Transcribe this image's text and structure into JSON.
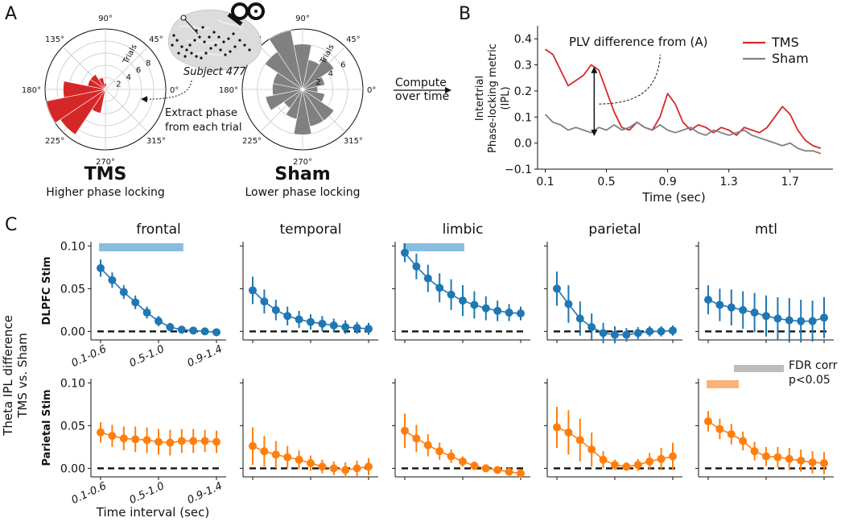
{
  "panel_labels": {
    "a": "A",
    "b": "B",
    "c": "C"
  },
  "panel_a": {
    "angle_labels": [
      "0°",
      "45°",
      "90°",
      "135°",
      "180°",
      "225°",
      "270°",
      "315°"
    ],
    "trials_label": "Trials",
    "subject_label": "Subject 477",
    "extract_label_1": "Extract phase",
    "extract_label_2": "from each trial",
    "tms": {
      "title": "TMS",
      "subtitle": "Higher phase locking",
      "radial_ticks": [
        "2",
        "4",
        "6",
        "8"
      ],
      "color": "#d62728"
    },
    "sham": {
      "title": "Sham",
      "subtitle": "Lower phase locking",
      "radial_ticks": [
        "2",
        "4",
        "6"
      ],
      "color": "#808080"
    },
    "compute_label_1": "Compute",
    "compute_label_2": "over time"
  },
  "chart_data": [
    {
      "type": "bar",
      "subtype": "polar-histogram",
      "name": "TMS",
      "color": "#d62728",
      "bin_width_deg": 22.5,
      "bin_centers_deg": [
        0,
        22.5,
        45,
        67.5,
        90,
        112.5,
        135,
        157.5,
        180,
        202.5,
        225,
        247.5,
        270,
        292.5,
        315,
        337.5
      ],
      "values": [
        0,
        0,
        0,
        0,
        1,
        2,
        3,
        3,
        7,
        10,
        9,
        4,
        0,
        0,
        0,
        0
      ],
      "rmax": 10
    },
    {
      "type": "bar",
      "subtype": "polar-histogram",
      "name": "Sham",
      "color": "#808080",
      "bin_width_deg": 22.5,
      "bin_centers_deg": [
        0,
        22.5,
        45,
        67.5,
        90,
        112.5,
        135,
        157.5,
        180,
        202.5,
        225,
        247.5,
        270,
        292.5,
        315,
        337.5
      ],
      "values": [
        2,
        3,
        5,
        4,
        6,
        8,
        6,
        4,
        4,
        5,
        3,
        4,
        6,
        5,
        5,
        3
      ],
      "rmax": 8
    },
    {
      "type": "line",
      "title": "",
      "xlabel": "Time (sec)",
      "ylabel": "Intertrial Phase-locking metric (IPL)",
      "ylabel_lines": [
        "Intertrial",
        "Phase-locking metric",
        "(IPL)"
      ],
      "xlim": [
        0.05,
        1.98
      ],
      "ylim": [
        -0.1,
        0.45
      ],
      "xticks": [
        0.1,
        0.5,
        0.9,
        1.3,
        1.7
      ],
      "xtick_labels": [
        "0.1",
        "0.5",
        "0.9",
        "1.3",
        "1.7"
      ],
      "yticks": [
        -0.1,
        0.0,
        0.1,
        0.2,
        0.3,
        0.4
      ],
      "ytick_labels": [
        "−0.1",
        "0.0",
        "0.1",
        "0.2",
        "0.3",
        "0.4"
      ],
      "annotation": "PLV difference from (A)",
      "arrow_at_x": 0.42,
      "arrow_y_range": [
        0.03,
        0.29
      ],
      "legend": [
        "TMS",
        "Sham"
      ],
      "x": [
        0.1,
        0.15,
        0.2,
        0.25,
        0.3,
        0.35,
        0.4,
        0.45,
        0.5,
        0.55,
        0.6,
        0.65,
        0.7,
        0.75,
        0.8,
        0.85,
        0.9,
        0.95,
        1.0,
        1.05,
        1.1,
        1.15,
        1.2,
        1.25,
        1.3,
        1.35,
        1.4,
        1.45,
        1.5,
        1.55,
        1.6,
        1.65,
        1.7,
        1.75,
        1.8,
        1.85,
        1.9
      ],
      "series": [
        {
          "name": "TMS",
          "color": "#d62728",
          "values": [
            0.36,
            0.34,
            0.28,
            0.22,
            0.24,
            0.26,
            0.3,
            0.28,
            0.2,
            0.12,
            0.06,
            0.05,
            0.08,
            0.06,
            0.05,
            0.1,
            0.19,
            0.15,
            0.08,
            0.05,
            0.07,
            0.06,
            0.04,
            0.06,
            0.05,
            0.03,
            0.06,
            0.05,
            0.04,
            0.06,
            0.1,
            0.14,
            0.11,
            0.05,
            0.01,
            -0.01,
            -0.02
          ]
        },
        {
          "name": "Sham",
          "color": "#808080",
          "values": [
            0.11,
            0.08,
            0.07,
            0.05,
            0.06,
            0.05,
            0.04,
            0.06,
            0.05,
            0.07,
            0.05,
            0.06,
            0.08,
            0.06,
            0.05,
            0.07,
            0.05,
            0.04,
            0.05,
            0.06,
            0.04,
            0.03,
            0.05,
            0.04,
            0.03,
            0.04,
            0.05,
            0.03,
            0.02,
            0.01,
            0.0,
            -0.01,
            0.0,
            -0.02,
            -0.03,
            -0.03,
            -0.04
          ]
        }
      ]
    },
    {
      "type": "line",
      "subtype": "errorbar-grid",
      "rows": [
        "DLPFC Stim",
        "Parietal Stim"
      ],
      "row_colors": [
        "#1f77b4",
        "#ff7f0e"
      ],
      "columns": [
        "frontal",
        "temporal",
        "limbic",
        "parietal",
        "mtl"
      ],
      "ylabel": "Theta IPL difference TMS vs. Sham",
      "ylabel_lines": [
        "Theta IPL difference",
        "TMS vs. Sham"
      ],
      "xlabel": "Time interval (sec)",
      "ylim": [
        -0.01,
        0.105
      ],
      "yticks": [
        0.0,
        0.05,
        0.1
      ],
      "ytick_labels": [
        "0.00",
        "0.05",
        "0.10"
      ],
      "xtick_labels": [
        "0.1-0.6",
        "0.5-1.0",
        "0.9-1.4"
      ],
      "xtick_positions": [
        0,
        5,
        10
      ],
      "legend": {
        "label_1": "FDR corr",
        "label_2": "p<0.05",
        "color": "#bdbdbd"
      },
      "panels": [
        {
          "row": 0,
          "col": 0,
          "values": [
            0.074,
            0.06,
            0.046,
            0.034,
            0.022,
            0.012,
            0.005,
            0.002,
            0.001,
            0.0,
            -0.001
          ],
          "errors": [
            0.01,
            0.009,
            0.008,
            0.008,
            0.007,
            0.006,
            0.005,
            0.004,
            0.004,
            0.003,
            0.003
          ],
          "sig": [
            0,
            7
          ],
          "sig_color": "#89bde0"
        },
        {
          "row": 0,
          "col": 1,
          "values": [
            0.048,
            0.035,
            0.025,
            0.018,
            0.014,
            0.011,
            0.009,
            0.007,
            0.005,
            0.004,
            0.003
          ],
          "errors": [
            0.016,
            0.014,
            0.012,
            0.011,
            0.01,
            0.009,
            0.009,
            0.008,
            0.008,
            0.007,
            0.007
          ],
          "sig": null
        },
        {
          "row": 0,
          "col": 2,
          "values": [
            0.092,
            0.076,
            0.062,
            0.051,
            0.043,
            0.036,
            0.031,
            0.027,
            0.024,
            0.022,
            0.021
          ],
          "errors": [
            0.011,
            0.015,
            0.016,
            0.017,
            0.018,
            0.018,
            0.016,
            0.014,
            0.012,
            0.01,
            0.008
          ],
          "sig": [
            0,
            5
          ],
          "sig_color": "#89bde0"
        },
        {
          "row": 0,
          "col": 3,
          "values": [
            0.05,
            0.032,
            0.015,
            0.005,
            -0.002,
            -0.004,
            -0.004,
            -0.002,
            0.0,
            0.0,
            0.001
          ],
          "errors": [
            0.02,
            0.022,
            0.02,
            0.016,
            0.012,
            0.01,
            0.008,
            0.007,
            0.006,
            0.006,
            0.006
          ],
          "sig": null
        },
        {
          "row": 0,
          "col": 4,
          "values": [
            0.037,
            0.031,
            0.028,
            0.025,
            0.022,
            0.018,
            0.015,
            0.013,
            0.012,
            0.012,
            0.016
          ],
          "errors": [
            0.017,
            0.019,
            0.021,
            0.022,
            0.023,
            0.024,
            0.025,
            0.026,
            0.025,
            0.024,
            0.024
          ],
          "sig": null
        },
        {
          "row": 1,
          "col": 0,
          "values": [
            0.042,
            0.038,
            0.035,
            0.034,
            0.033,
            0.031,
            0.03,
            0.032,
            0.032,
            0.032,
            0.031
          ],
          "errors": [
            0.012,
            0.013,
            0.014,
            0.015,
            0.015,
            0.015,
            0.015,
            0.014,
            0.014,
            0.013,
            0.013
          ],
          "sig": null
        },
        {
          "row": 1,
          "col": 1,
          "values": [
            0.026,
            0.02,
            0.016,
            0.013,
            0.01,
            0.006,
            0.002,
            0.0,
            -0.002,
            0.0,
            0.002
          ],
          "errors": [
            0.022,
            0.018,
            0.016,
            0.013,
            0.011,
            0.009,
            0.008,
            0.008,
            0.009,
            0.009,
            0.01
          ],
          "sig": null
        },
        {
          "row": 1,
          "col": 2,
          "values": [
            0.044,
            0.035,
            0.027,
            0.02,
            0.014,
            0.008,
            0.003,
            0.0,
            -0.002,
            -0.004,
            -0.006
          ],
          "errors": [
            0.02,
            0.016,
            0.013,
            0.01,
            0.008,
            0.006,
            0.005,
            0.004,
            0.004,
            0.004,
            0.005
          ],
          "sig": null
        },
        {
          "row": 1,
          "col": 3,
          "values": [
            0.048,
            0.042,
            0.033,
            0.022,
            0.01,
            0.004,
            0.002,
            0.004,
            0.008,
            0.011,
            0.014
          ],
          "errors": [
            0.024,
            0.026,
            0.025,
            0.02,
            0.01,
            0.006,
            0.005,
            0.007,
            0.01,
            0.013,
            0.016
          ],
          "sig": null
        },
        {
          "row": 1,
          "col": 4,
          "values": [
            0.055,
            0.046,
            0.04,
            0.032,
            0.02,
            0.014,
            0.013,
            0.011,
            0.009,
            0.007,
            0.006
          ],
          "errors": [
            0.012,
            0.012,
            0.012,
            0.011,
            0.011,
            0.011,
            0.012,
            0.013,
            0.013,
            0.013,
            0.013
          ],
          "sig": [
            0,
            2.5
          ],
          "sig_color": "#f9b27a"
        }
      ]
    }
  ]
}
